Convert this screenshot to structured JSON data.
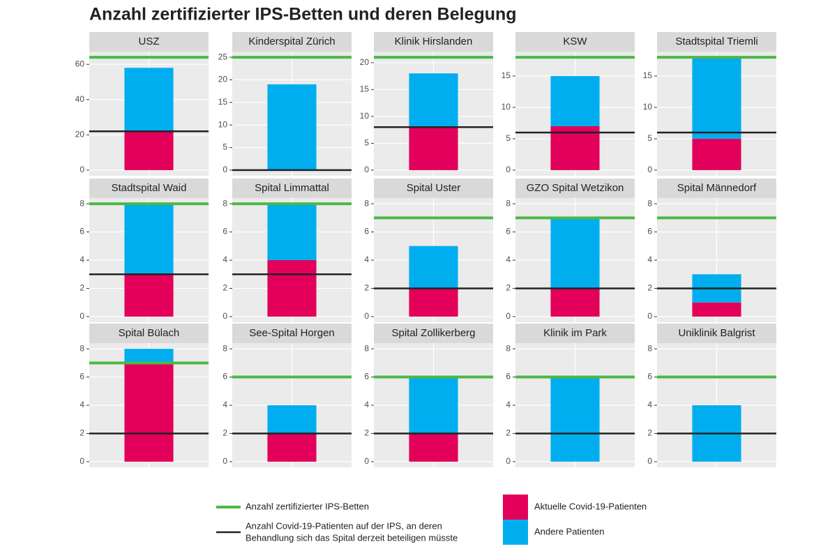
{
  "title": "Anzahl zertifizierter IPS-Betten und deren Belegung",
  "legend": {
    "lines": [
      {
        "label": "Anzahl zertifizierter IPS-Betten",
        "color": "#4cb848"
      },
      {
        "label": "Anzahl Covid-19-Patienten auf der IPS, an deren",
        "label2": "Behandlung sich das Spital derzeit beteiligen müsste",
        "color": "#222222"
      }
    ],
    "bars": [
      {
        "label": "Aktuelle Covid-19-Patienten",
        "color": "#e2005a"
      },
      {
        "label": "Andere Patienten",
        "color": "#00aeef"
      }
    ]
  },
  "chart_data": [
    {
      "type": "bar",
      "title": "USZ",
      "covid": 22,
      "other": 36,
      "certified_beds": 64,
      "covid_threshold": 22,
      "ylim": [
        -3.2,
        67.2
      ],
      "yticks": [
        0,
        20,
        40,
        60
      ]
    },
    {
      "type": "bar",
      "title": "Kinderspital Zürich",
      "covid": 0,
      "other": 19,
      "certified_beds": 25,
      "covid_threshold": 0,
      "ylim": [
        -1.25,
        26.25
      ],
      "yticks": [
        0,
        5,
        10,
        15,
        20,
        25
      ]
    },
    {
      "type": "bar",
      "title": "Klinik Hirslanden",
      "covid": 8,
      "other": 10,
      "certified_beds": 21,
      "covid_threshold": 8,
      "ylim": [
        -1.05,
        22.05
      ],
      "yticks": [
        0,
        5,
        10,
        15,
        20
      ]
    },
    {
      "type": "bar",
      "title": "KSW",
      "covid": 7,
      "other": 8,
      "certified_beds": 18,
      "covid_threshold": 6,
      "ylim": [
        -0.9,
        18.9
      ],
      "yticks": [
        0,
        5,
        10,
        15
      ]
    },
    {
      "type": "bar",
      "title": "Stadtspital Triemli",
      "covid": 5,
      "other": 13,
      "certified_beds": 18,
      "covid_threshold": 6,
      "ylim": [
        -0.9,
        18.9
      ],
      "yticks": [
        0,
        5,
        10,
        15
      ]
    },
    {
      "type": "bar",
      "title": "Stadtspital Waid",
      "covid": 3,
      "other": 5,
      "certified_beds": 8,
      "covid_threshold": 3,
      "ylim": [
        -0.4,
        8.4
      ],
      "yticks": [
        0,
        2,
        4,
        6,
        8
      ]
    },
    {
      "type": "bar",
      "title": "Spital Limmattal",
      "covid": 4,
      "other": 4,
      "certified_beds": 8,
      "covid_threshold": 3,
      "ylim": [
        -0.4,
        8.4
      ],
      "yticks": [
        0,
        2,
        4,
        6,
        8
      ]
    },
    {
      "type": "bar",
      "title": "Spital Uster",
      "covid": 2,
      "other": 3,
      "certified_beds": 7,
      "covid_threshold": 2,
      "ylim": [
        -0.4,
        8.4
      ],
      "yticks": [
        0,
        2,
        4,
        6,
        8
      ]
    },
    {
      "type": "bar",
      "title": "GZO Spital Wetzikon",
      "covid": 2,
      "other": 5,
      "certified_beds": 7,
      "covid_threshold": 2,
      "ylim": [
        -0.4,
        8.4
      ],
      "yticks": [
        0,
        2,
        4,
        6,
        8
      ]
    },
    {
      "type": "bar",
      "title": "Spital Männedorf",
      "covid": 1,
      "other": 2,
      "certified_beds": 7,
      "covid_threshold": 2,
      "ylim": [
        -0.4,
        8.4
      ],
      "yticks": [
        0,
        2,
        4,
        6,
        8
      ]
    },
    {
      "type": "bar",
      "title": "Spital Bülach",
      "covid": 7,
      "other": 1,
      "certified_beds": 7,
      "covid_threshold": 2,
      "ylim": [
        -0.4,
        8.4
      ],
      "yticks": [
        0,
        2,
        4,
        6,
        8
      ]
    },
    {
      "type": "bar",
      "title": "See-Spital Horgen",
      "covid": 2,
      "other": 2,
      "certified_beds": 6,
      "covid_threshold": 2,
      "ylim": [
        -0.4,
        8.4
      ],
      "yticks": [
        0,
        2,
        4,
        6,
        8
      ]
    },
    {
      "type": "bar",
      "title": "Spital Zollikerberg",
      "covid": 2,
      "other": 4,
      "certified_beds": 6,
      "covid_threshold": 2,
      "ylim": [
        -0.4,
        8.4
      ],
      "yticks": [
        0,
        2,
        4,
        6,
        8
      ]
    },
    {
      "type": "bar",
      "title": "Klinik im Park",
      "covid": 0,
      "other": 6,
      "certified_beds": 6,
      "covid_threshold": 2,
      "ylim": [
        -0.4,
        8.4
      ],
      "yticks": [
        0,
        2,
        4,
        6,
        8
      ]
    },
    {
      "type": "bar",
      "title": "Uniklinik Balgrist",
      "covid": 0,
      "other": 4,
      "certified_beds": 6,
      "covid_threshold": 2,
      "ylim": [
        -0.4,
        8.4
      ],
      "yticks": [
        0,
        2,
        4,
        6,
        8
      ]
    }
  ]
}
